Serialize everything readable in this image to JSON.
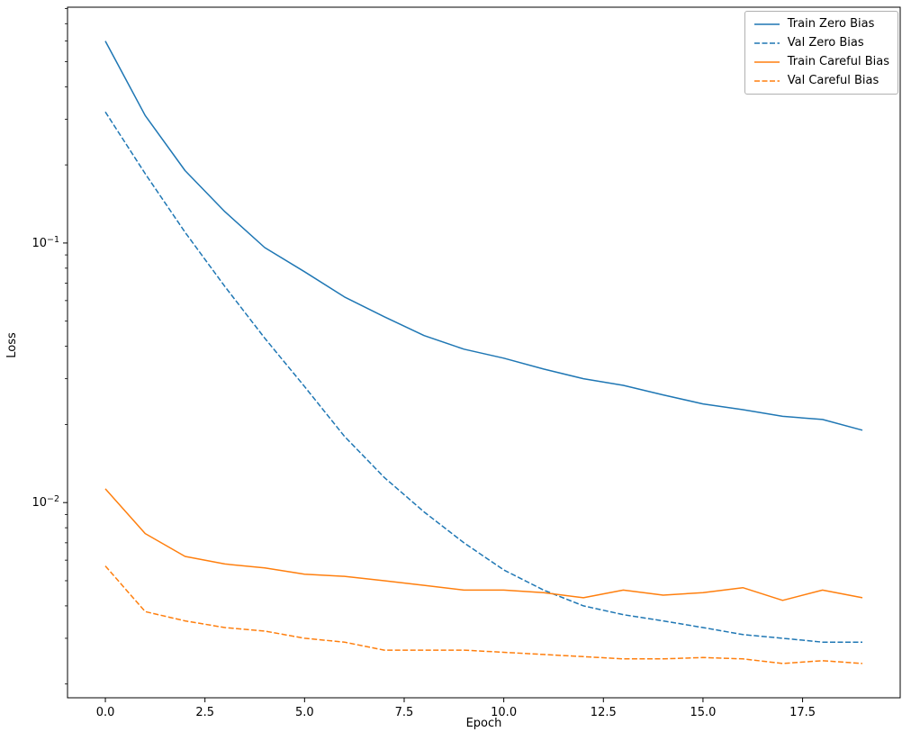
{
  "figure": {
    "background": "#ffffff",
    "frame_color": "#000000"
  },
  "chart_data": {
    "type": "line",
    "title": "",
    "xlabel": "Epoch",
    "ylabel": "Loss",
    "yscale": "log",
    "grid": false,
    "legend_position": "upper right",
    "xlim": [
      -0.95,
      19.95
    ],
    "ylim": [
      0.00177,
      0.81
    ],
    "x": [
      0,
      1,
      2,
      3,
      4,
      5,
      6,
      7,
      8,
      9,
      10,
      11,
      12,
      13,
      14,
      15,
      16,
      17,
      18,
      19
    ],
    "xticks": [
      0.0,
      2.5,
      5.0,
      7.5,
      10.0,
      12.5,
      15.0,
      17.5
    ],
    "xtick_labels": [
      "0.0",
      "2.5",
      "5.0",
      "7.5",
      "10.0",
      "12.5",
      "15.0",
      "17.5"
    ],
    "yticks": [
      {
        "value": 0.1,
        "base": "10",
        "exp": "−1"
      },
      {
        "value": 0.01,
        "base": "10",
        "exp": "−2"
      }
    ],
    "series": [
      {
        "name": "Train Zero Bias",
        "color": "#1f77b4",
        "dash": "solid",
        "values": [
          0.6,
          0.31,
          0.19,
          0.132,
          0.096,
          0.0775,
          0.062,
          0.052,
          0.044,
          0.039,
          0.036,
          0.0327,
          0.03,
          0.0283,
          0.026,
          0.024,
          0.0228,
          0.0215,
          0.0209,
          0.019
        ]
      },
      {
        "name": "Val Zero Bias",
        "color": "#1f77b4",
        "dash": "dashed",
        "values": [
          0.32,
          0.185,
          0.11,
          0.068,
          0.043,
          0.028,
          0.018,
          0.0125,
          0.0092,
          0.007,
          0.0055,
          0.0046,
          0.004,
          0.0037,
          0.0035,
          0.0033,
          0.0031,
          0.003,
          0.0029,
          0.0029
        ]
      },
      {
        "name": "Train Careful Bias",
        "color": "#ff7f0e",
        "dash": "solid",
        "values": [
          0.0113,
          0.0076,
          0.0062,
          0.0058,
          0.0056,
          0.0053,
          0.0052,
          0.005,
          0.0048,
          0.0046,
          0.0046,
          0.0045,
          0.0043,
          0.0046,
          0.0044,
          0.0045,
          0.0047,
          0.0042,
          0.0046,
          0.0043
        ]
      },
      {
        "name": "Val Careful Bias",
        "color": "#ff7f0e",
        "dash": "dashed",
        "values": [
          0.0057,
          0.0038,
          0.0035,
          0.0033,
          0.0032,
          0.003,
          0.0029,
          0.0027,
          0.0027,
          0.0027,
          0.00265,
          0.0026,
          0.00255,
          0.0025,
          0.0025,
          0.00253,
          0.0025,
          0.0024,
          0.00246,
          0.0024
        ]
      }
    ]
  }
}
